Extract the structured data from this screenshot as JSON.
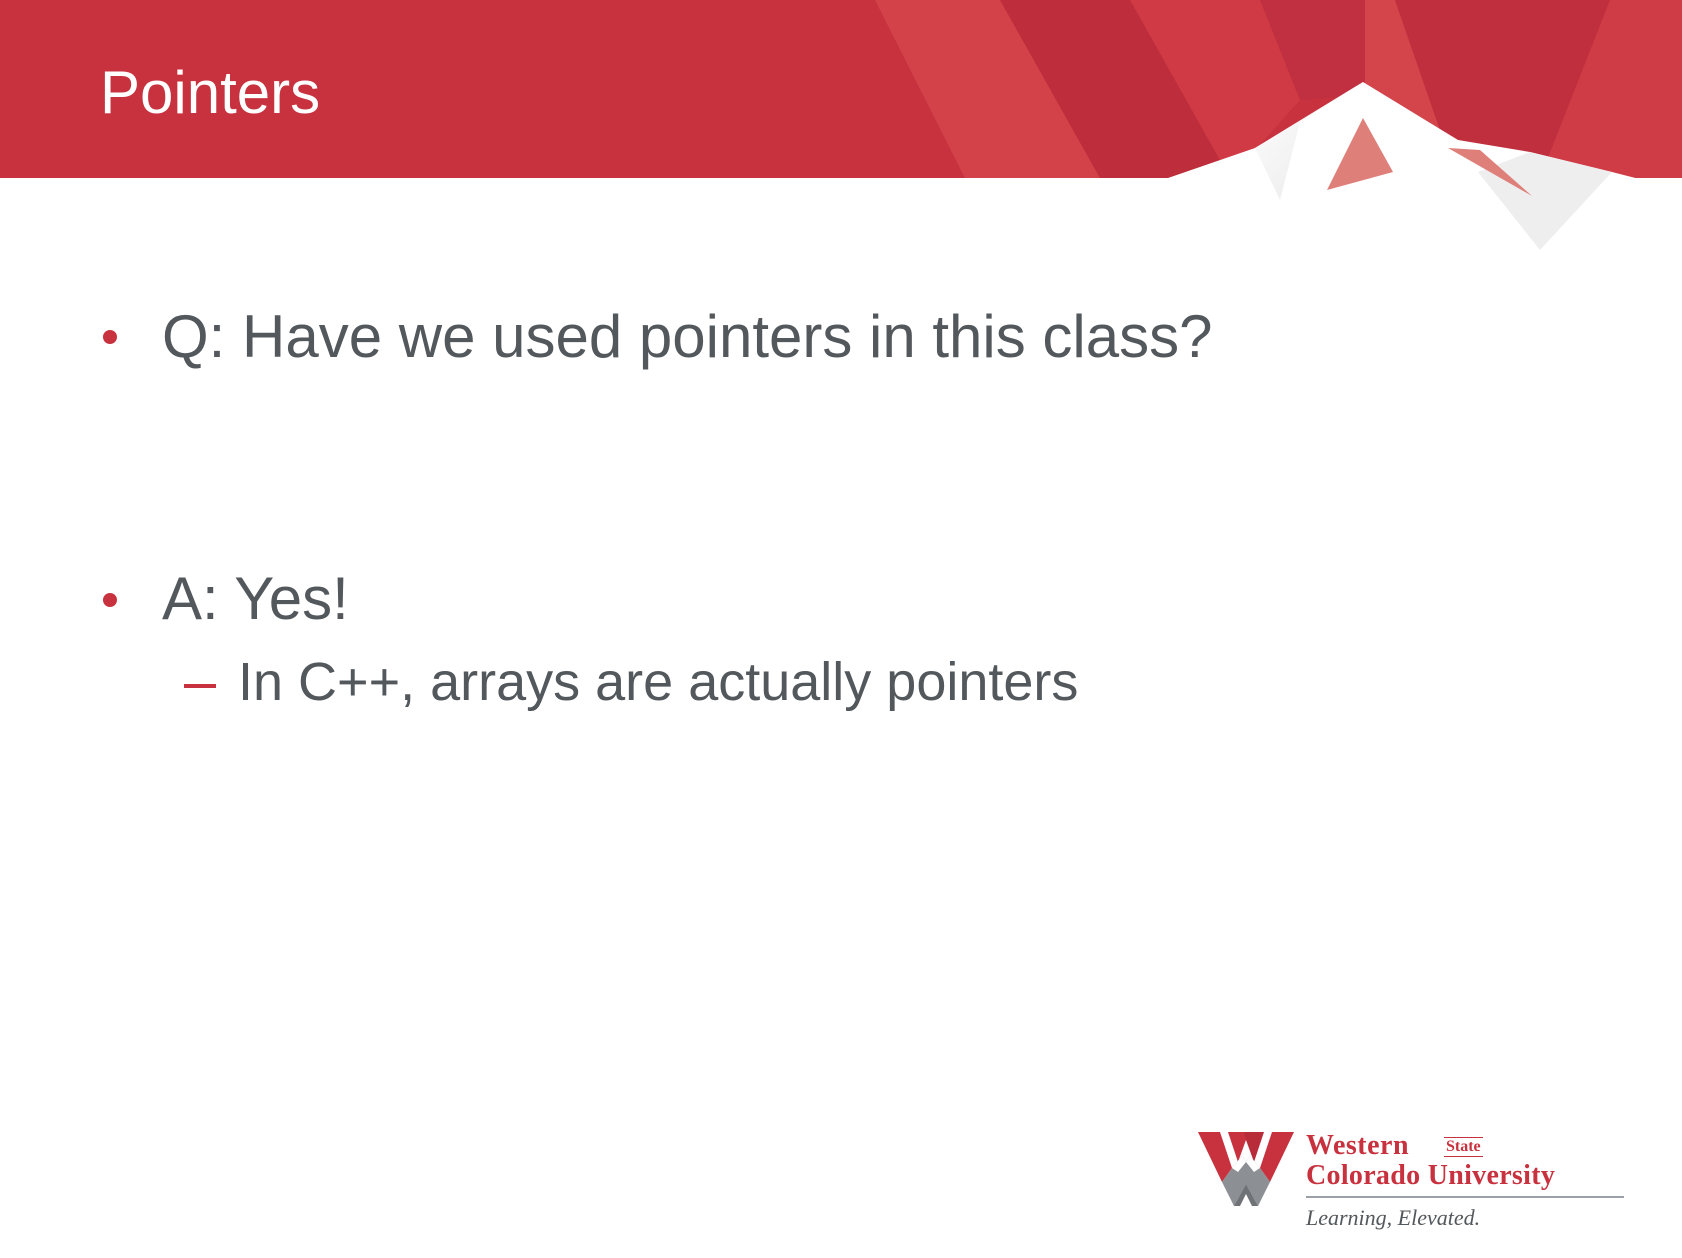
{
  "slide": {
    "title": "Pointers",
    "bullets": [
      {
        "text": "Q: Have we used pointers in this class?"
      },
      {
        "text": "A: Yes!"
      }
    ],
    "sub_bullets": [
      {
        "text": "In C++, arrays are actually pointers"
      }
    ]
  },
  "logo": {
    "name_line1": "Western",
    "name_state": "State",
    "name_line2": "Colorado University",
    "tagline": "Learning, Elevated."
  },
  "colors": {
    "brand_red": "#c8323f",
    "body_text": "#53585c",
    "title_text": "#ffffff"
  }
}
